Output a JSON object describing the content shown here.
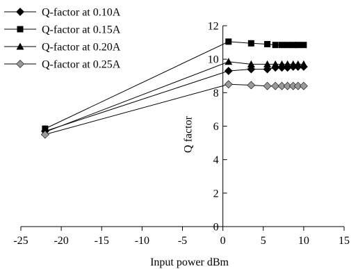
{
  "chart_data": {
    "type": "line",
    "title": "",
    "xlabel": "Input power dBm",
    "ylabel": "Q factor",
    "xlim": [
      -25,
      15
    ],
    "ylim": [
      0,
      12
    ],
    "xticks": [
      -25,
      -20,
      -15,
      -10,
      -5,
      0,
      5,
      10,
      15
    ],
    "yticks": [
      0,
      2,
      4,
      6,
      8,
      10,
      12
    ],
    "grid": false,
    "legend_position": "top-left",
    "series": [
      {
        "name": "Q-factor at 0.10A",
        "marker": "diamond",
        "color": "#000000",
        "x": [
          -22,
          0.7,
          3.5,
          5.5,
          6.5,
          7.3,
          8,
          8.7,
          9.3,
          10
        ],
        "y": [
          5.7,
          9.3,
          9.4,
          9.4,
          9.5,
          9.5,
          9.5,
          9.55,
          9.55,
          9.55
        ]
      },
      {
        "name": "Q-factor at 0.15A",
        "marker": "square",
        "color": "#000000",
        "x": [
          -22,
          0.7,
          3.5,
          5.5,
          6.5,
          7.3,
          8,
          8.7,
          9.3,
          10
        ],
        "y": [
          5.85,
          11.05,
          10.95,
          10.9,
          10.85,
          10.85,
          10.85,
          10.85,
          10.85,
          10.85
        ]
      },
      {
        "name": "Q-factor at 0.20A",
        "marker": "triangle",
        "color": "#000000",
        "x": [
          -22,
          0.7,
          3.5,
          5.5,
          6.5,
          7.3,
          8,
          8.7,
          9.3,
          10
        ],
        "y": [
          5.65,
          9.85,
          9.7,
          9.7,
          9.7,
          9.7,
          9.7,
          9.7,
          9.7,
          9.7
        ]
      },
      {
        "name": "Q-factor at 0.25A",
        "marker": "diamond",
        "color": "#999999",
        "x": [
          -22,
          0.7,
          3.5,
          5.5,
          6.5,
          7.3,
          8,
          8.7,
          9.3,
          10
        ],
        "y": [
          5.5,
          8.5,
          8.45,
          8.4,
          8.4,
          8.4,
          8.4,
          8.4,
          8.4,
          8.4
        ]
      }
    ]
  }
}
